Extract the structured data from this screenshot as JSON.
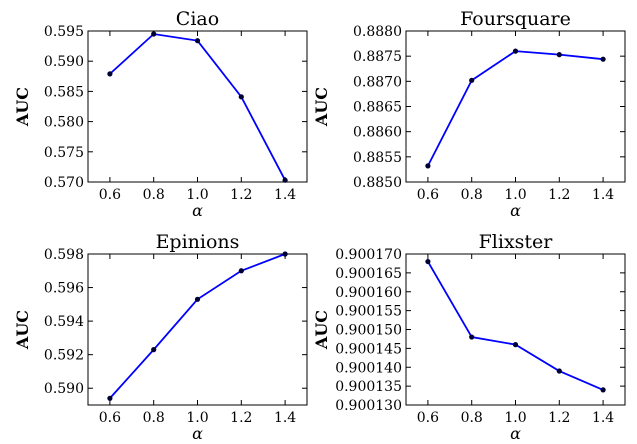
{
  "chart_data": [
    {
      "type": "line",
      "title": "Ciao",
      "xlabel": "α",
      "ylabel": "AUC",
      "x": [
        0.6,
        0.8,
        1.0,
        1.2,
        1.4
      ],
      "x_ticks": [
        "0.6",
        "0.8",
        "1.0",
        "1.2",
        "1.4"
      ],
      "xlim": [
        0.5,
        1.5
      ],
      "ylim": [
        0.57,
        0.595
      ],
      "y_ticks": [
        "0.570",
        "0.575",
        "0.580",
        "0.585",
        "0.590",
        "0.595"
      ],
      "series": [
        {
          "values": [
            0.5879,
            0.5945,
            0.5934,
            0.5841,
            0.5703
          ]
        }
      ],
      "line_color": "#0000ff",
      "marker_color": "#000033",
      "grid": false
    },
    {
      "type": "line",
      "title": "Foursquare",
      "xlabel": "α",
      "ylabel": "AUC",
      "x": [
        0.6,
        0.8,
        1.0,
        1.2,
        1.4
      ],
      "x_ticks": [
        "0.6",
        "0.8",
        "1.0",
        "1.2",
        "1.4"
      ],
      "xlim": [
        0.5,
        1.5
      ],
      "ylim": [
        0.885,
        0.888
      ],
      "y_ticks": [
        "0.8850",
        "0.8855",
        "0.8860",
        "0.8865",
        "0.8870",
        "0.8875",
        "0.8880"
      ],
      "series": [
        {
          "values": [
            0.88532,
            0.88702,
            0.8876,
            0.88753,
            0.88744
          ]
        }
      ],
      "line_color": "#0000ff",
      "marker_color": "#000033",
      "grid": false
    },
    {
      "type": "line",
      "title": "Epinions",
      "xlabel": "α",
      "ylabel": "AUC",
      "x": [
        0.6,
        0.8,
        1.0,
        1.2,
        1.4
      ],
      "x_ticks": [
        "0.6",
        "0.8",
        "1.0",
        "1.2",
        "1.4"
      ],
      "xlim": [
        0.5,
        1.5
      ],
      "ylim": [
        0.589,
        0.598
      ],
      "y_ticks": [
        "0.590",
        "0.592",
        "0.594",
        "0.596",
        "0.598"
      ],
      "series": [
        {
          "values": [
            0.5894,
            0.5923,
            0.5953,
            0.597,
            0.598
          ]
        }
      ],
      "line_color": "#0000ff",
      "marker_color": "#000033",
      "grid": false
    },
    {
      "type": "line",
      "title": "Flixster",
      "xlabel": "α",
      "ylabel": "AUC",
      "x": [
        0.6,
        0.8,
        1.0,
        1.2,
        1.4
      ],
      "x_ticks": [
        "0.6",
        "0.8",
        "1.0",
        "1.2",
        "1.4"
      ],
      "xlim": [
        0.5,
        1.5
      ],
      "ylim": [
        0.90013,
        0.90017
      ],
      "y_ticks": [
        "0.900130",
        "0.900135",
        "0.900140",
        "0.900145",
        "0.900150",
        "0.900155",
        "0.900160",
        "0.900165",
        "0.900170"
      ],
      "series": [
        {
          "values": [
            0.900168,
            0.900148,
            0.900146,
            0.900139,
            0.900134
          ]
        }
      ],
      "line_color": "#0000ff",
      "marker_color": "#000033",
      "grid": false
    }
  ]
}
